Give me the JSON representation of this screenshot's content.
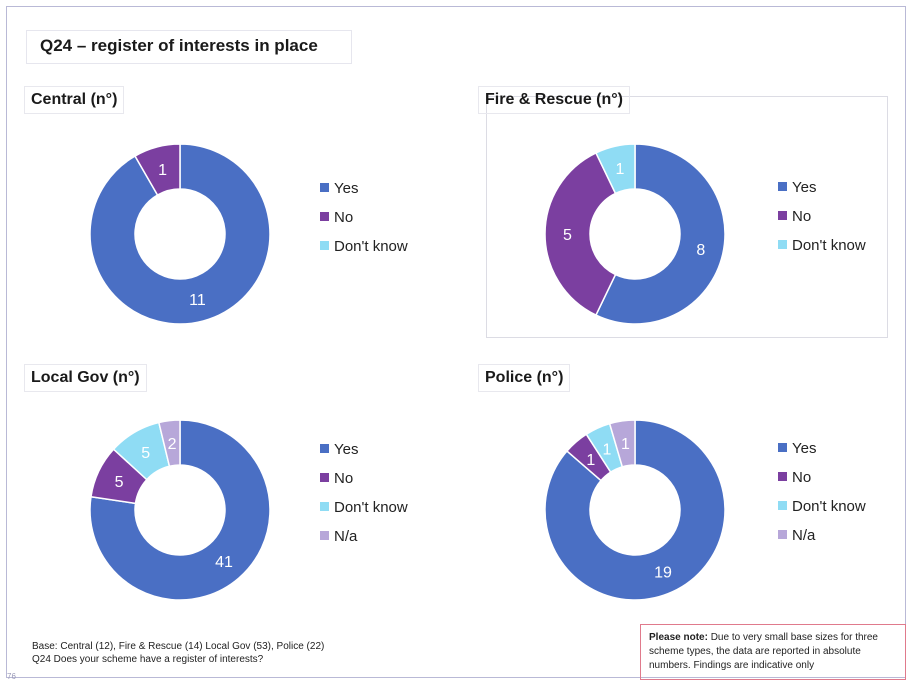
{
  "title": "Q24 – register of interests in place",
  "colors": {
    "Yes": "#4a6fc4",
    "No": "#7b3fa0",
    "Don't know": "#8fdcf4",
    "N/a": "#b7a7d9"
  },
  "chart_data": [
    {
      "type": "pie",
      "title": "Central  (n°)",
      "categories": [
        "Yes",
        "No",
        "Don't know"
      ],
      "values": [
        11,
        1,
        0
      ],
      "legend": "right"
    },
    {
      "type": "pie",
      "title": "Fire & Rescue (n°)",
      "categories": [
        "Yes",
        "No",
        "Don't know"
      ],
      "values": [
        8,
        5,
        1
      ],
      "legend": "right"
    },
    {
      "type": "pie",
      "title": "Local Gov (n°)",
      "categories": [
        "Yes",
        "No",
        "Don't know",
        "N/a"
      ],
      "values": [
        41,
        5,
        5,
        2
      ],
      "legend": "right"
    },
    {
      "type": "pie",
      "title": "Police (n°)",
      "categories": [
        "Yes",
        "No",
        "Don't know",
        "N/a"
      ],
      "values": [
        19,
        1,
        1,
        1
      ],
      "legend": "right"
    }
  ],
  "footer": {
    "base": "Base: Central (12), Fire & Rescue (14) Local Gov (53), Police (22)",
    "question": "Q24 Does your scheme have a register of interests?"
  },
  "note": {
    "label": "Please note:",
    "text": " Due to very small base sizes  for three scheme types, the data are reported in absolute numbers.  Findings are indicative only"
  },
  "page_number": "76"
}
